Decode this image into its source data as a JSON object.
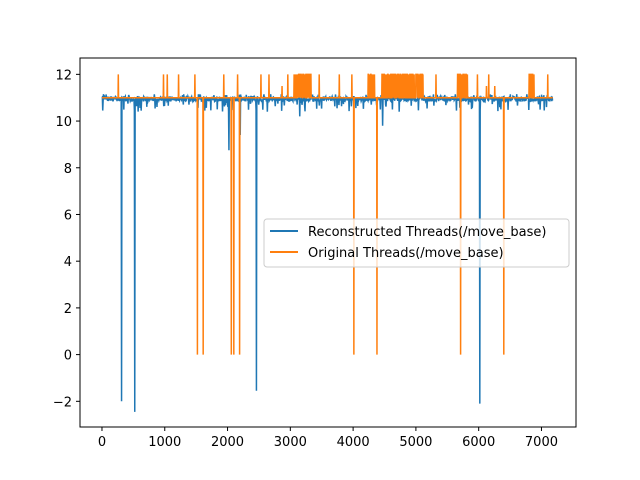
{
  "chart_data": {
    "type": "line",
    "title": "",
    "xlabel": "",
    "ylabel": "",
    "xlim": [
      -350,
      7550
    ],
    "ylim": [
      -3.1,
      12.7
    ],
    "xticks": [
      0,
      1000,
      2000,
      3000,
      4000,
      5000,
      6000,
      7000
    ],
    "yticks": [
      -2,
      0,
      2,
      4,
      6,
      8,
      10,
      12
    ],
    "grid": false,
    "legend_position": "center-right",
    "series": [
      {
        "name": "Reconstructed Threads(/move_base)",
        "color": "#1f77b4",
        "baseline": 10.95,
        "x_range": [
          0,
          7180
        ],
        "band": [
          10.75,
          11.1
        ],
        "dips": [
          {
            "x": 310,
            "y": -2.0
          },
          {
            "x": 520,
            "y": -2.45
          },
          {
            "x": 2020,
            "y": 8.75
          },
          {
            "x": 2200,
            "y": 9.4
          },
          {
            "x": 2460,
            "y": -1.55
          },
          {
            "x": 3150,
            "y": 10.2
          },
          {
            "x": 4470,
            "y": 9.8
          },
          {
            "x": 6020,
            "y": -2.1
          }
        ]
      },
      {
        "name": "Original Threads(/move_base)",
        "color": "#ff7f0e",
        "baseline": 11.0,
        "x_range": [
          0,
          7180
        ],
        "spike_value": 12.0,
        "spikes_x": [
          260,
          980,
          1040,
          1220,
          1480,
          1940,
          2160,
          2530,
          2660,
          2960,
          3460,
          3780,
          3980,
          5320,
          5980,
          6160,
          6880,
          7100
        ],
        "spike_clusters": [
          [
            3060,
            3330
          ],
          [
            4240,
            4340
          ],
          [
            4460,
            4980
          ],
          [
            5000,
            5120
          ],
          [
            5660,
            5820
          ],
          [
            6800,
            6860
          ]
        ],
        "drops_to_zero": [
          1520,
          1610,
          2060,
          2100,
          2190,
          4010,
          4380,
          5710,
          6400
        ]
      }
    ]
  }
}
